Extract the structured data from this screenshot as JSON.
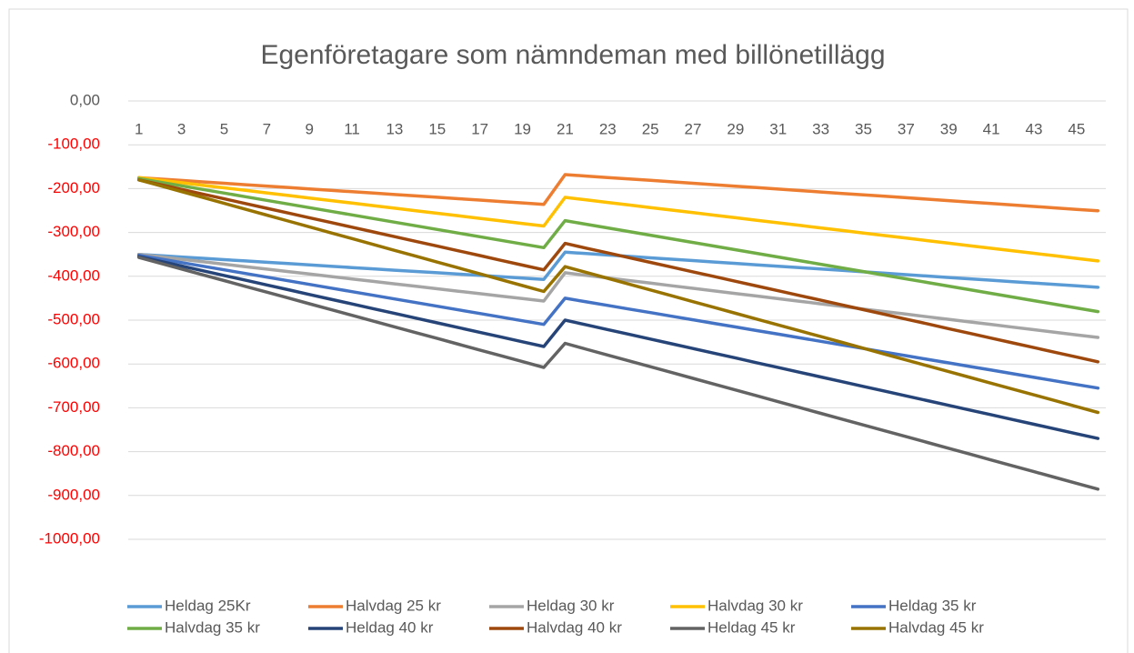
{
  "chart_data": {
    "type": "line",
    "title": "Egenföretagare som nämndeman med billönetillägg",
    "categories": [
      1,
      null,
      3,
      null,
      5,
      null,
      7,
      null,
      9,
      null,
      11,
      null,
      13,
      null,
      15,
      null,
      17,
      null,
      19,
      null,
      21,
      null,
      23,
      null,
      25,
      null,
      27,
      null,
      29,
      null,
      31,
      null,
      33,
      null,
      35,
      null,
      37,
      null,
      39,
      null,
      41,
      null,
      43,
      null,
      45,
      null
    ],
    "ylim": [
      -1000,
      0
    ],
    "yticks": [
      {
        "value": 0,
        "label": "0,00"
      },
      {
        "value": -100,
        "label": "-100,00"
      },
      {
        "value": -200,
        "label": "-200,00"
      },
      {
        "value": -300,
        "label": "-300,00"
      },
      {
        "value": -400,
        "label": "-400,00"
      },
      {
        "value": -500,
        "label": "-500,00"
      },
      {
        "value": -600,
        "label": "-600,00"
      },
      {
        "value": -700,
        "label": "-700,00"
      },
      {
        "value": -800,
        "label": "-800,00"
      },
      {
        "value": -900,
        "label": "-900,00"
      },
      {
        "value": -1000,
        "label": "-1000,00"
      }
    ],
    "grid": true,
    "negative_tick_color": "#ff0000",
    "legend": "bottom",
    "series": [
      {
        "name": "Heldag 25Kr",
        "color": "#5b9bd5",
        "values": [
          -350,
          -353,
          -356,
          -359,
          -362,
          -365,
          -368,
          -371,
          -374,
          -377,
          -380,
          -383,
          -386,
          -389,
          -392,
          -395,
          -398,
          -401,
          -404,
          -407,
          -345,
          -348.2,
          -351.4,
          -354.6,
          -357.8,
          -361,
          -364.2,
          -367.4,
          -370.6,
          -373.8,
          -377,
          -380.2,
          -383.4,
          -386.6,
          -389.8,
          -393,
          -396.2,
          -399.4,
          -402.6,
          -405.8,
          -409,
          -412.2,
          -415.4,
          -418.6,
          -421.8,
          -425
        ]
      },
      {
        "name": "Halvdag 25 kr",
        "color": "#ed7d31",
        "values": [
          -175,
          -178.2,
          -181.4,
          -184.6,
          -187.8,
          -191,
          -194.2,
          -197.4,
          -200.6,
          -203.8,
          -207,
          -210.2,
          -213.4,
          -216.6,
          -219.8,
          -223,
          -226.2,
          -229.4,
          -232.6,
          -235.8,
          -168,
          -171.3,
          -174.6,
          -177.9,
          -181.2,
          -184.5,
          -187.8,
          -191.1,
          -194.4,
          -197.7,
          -201,
          -204.3,
          -207.6,
          -210.9,
          -214.2,
          -217.5,
          -220.8,
          -224.1,
          -227.4,
          -230.7,
          -234,
          -237.3,
          -240.6,
          -243.9,
          -247.2,
          -250.5
        ]
      },
      {
        "name": "Heldag 30 kr",
        "color": "#a5a5a5",
        "values": [
          -350,
          -355.6,
          -361.2,
          -366.8,
          -372.4,
          -378,
          -383.6,
          -389.2,
          -394.8,
          -400.4,
          -406,
          -411.6,
          -417.2,
          -422.8,
          -428.4,
          -434,
          -439.6,
          -445.2,
          -450.8,
          -456.4,
          -392,
          -397.9,
          -403.8,
          -409.7,
          -415.6,
          -421.5,
          -427.4,
          -433.3,
          -439.2,
          -445.1,
          -451,
          -456.9,
          -462.8,
          -468.7,
          -474.6,
          -480.5,
          -486.4,
          -492.3,
          -498.2,
          -504.1,
          -510,
          -515.9,
          -521.8,
          -527.7,
          -533.6,
          -539.5
        ]
      },
      {
        "name": "Halvdag 30 kr",
        "color": "#ffc000",
        "values": [
          -175,
          -180.8,
          -186.6,
          -192.4,
          -198.2,
          -204,
          -209.8,
          -215.6,
          -221.4,
          -227.2,
          -233,
          -238.8,
          -244.6,
          -250.4,
          -256.2,
          -262,
          -267.8,
          -273.6,
          -279.4,
          -285.2,
          -220,
          -225.8,
          -231.6,
          -237.4,
          -243.2,
          -249,
          -254.8,
          -260.6,
          -266.4,
          -272.2,
          -278,
          -283.8,
          -289.6,
          -295.4,
          -301.2,
          -307,
          -312.8,
          -318.6,
          -324.4,
          -330.2,
          -336,
          -341.8,
          -347.6,
          -353.4,
          -359.2,
          -365
        ]
      },
      {
        "name": "Heldag 35 kr",
        "color": "#4472c4",
        "values": [
          -352,
          -360.3,
          -368.6,
          -376.9,
          -385.2,
          -393.5,
          -401.8,
          -410.1,
          -418.4,
          -426.7,
          -435,
          -443.3,
          -451.6,
          -459.9,
          -468.2,
          -476.5,
          -484.8,
          -493.1,
          -501.4,
          -509.7,
          -450,
          -458.2,
          -466.4,
          -474.6,
          -482.8,
          -491,
          -499.2,
          -507.4,
          -515.6,
          -523.8,
          -532,
          -540.2,
          -548.4,
          -556.6,
          -564.8,
          -573,
          -581.2,
          -589.4,
          -597.6,
          -605.8,
          -614,
          -622.2,
          -630.4,
          -638.6,
          -646.8,
          -655
        ]
      },
      {
        "name": "Halvdag 35 kr",
        "color": "#70ad47",
        "values": [
          -177,
          -185.3,
          -193.6,
          -201.9,
          -210.2,
          -218.5,
          -226.8,
          -235.1,
          -243.4,
          -251.7,
          -260,
          -268.3,
          -276.6,
          -284.9,
          -293.2,
          -301.5,
          -309.8,
          -318.1,
          -326.4,
          -334.7,
          -273,
          -281.3,
          -289.6,
          -297.9,
          -306.2,
          -314.5,
          -322.8,
          -331.1,
          -339.4,
          -347.7,
          -356,
          -364.3,
          -372.6,
          -380.9,
          -389.2,
          -397.5,
          -405.8,
          -414.1,
          -422.4,
          -430.7,
          -439,
          -447.3,
          -455.6,
          -463.9,
          -472.2,
          -480.5
        ]
      },
      {
        "name": "Heldag 40 kr",
        "color": "#264478",
        "values": [
          -355,
          -365.8,
          -376.6,
          -387.4,
          -398.2,
          -409,
          -419.8,
          -430.6,
          -441.4,
          -452.2,
          -463,
          -473.8,
          -484.6,
          -495.4,
          -506.2,
          -517,
          -527.8,
          -538.6,
          -549.4,
          -560.2,
          -500,
          -510.8,
          -521.6,
          -532.4,
          -543.2,
          -554,
          -564.8,
          -575.6,
          -586.4,
          -597.2,
          -608,
          -618.8,
          -629.6,
          -640.4,
          -651.2,
          -662,
          -672.8,
          -683.6,
          -694.4,
          -705.2,
          -716,
          -726.8,
          -737.6,
          -748.4,
          -759.2,
          -770
        ]
      },
      {
        "name": "Halvdag 40 kr",
        "color": "#9e480e",
        "values": [
          -180,
          -190.8,
          -201.6,
          -212.4,
          -223.2,
          -234,
          -244.8,
          -255.6,
          -266.4,
          -277.2,
          -288,
          -298.8,
          -309.6,
          -320.4,
          -331.2,
          -342,
          -352.8,
          -363.6,
          -374.4,
          -385.2,
          -325,
          -335.8,
          -346.6,
          -357.4,
          -368.2,
          -379,
          -389.8,
          -400.6,
          -411.4,
          -422.2,
          -433,
          -443.8,
          -454.6,
          -465.4,
          -476.2,
          -487,
          -497.8,
          -508.6,
          -519.4,
          -530.2,
          -541,
          -551.8,
          -562.6,
          -573.4,
          -584.2,
          -595
        ]
      },
      {
        "name": "Heldag 45 kr",
        "color": "#636363",
        "values": [
          -357,
          -370.2,
          -383.4,
          -396.6,
          -409.8,
          -423,
          -436.2,
          -449.4,
          -462.6,
          -475.8,
          -489,
          -502.2,
          -515.4,
          -528.6,
          -541.8,
          -555,
          -568.2,
          -581.4,
          -594.6,
          -607.8,
          -553,
          -566.3,
          -579.6,
          -592.9,
          -606.2,
          -619.5,
          -632.8,
          -646.1,
          -659.4,
          -672.7,
          -686,
          -699.3,
          -712.6,
          -725.9,
          -739.2,
          -752.5,
          -765.8,
          -779.1,
          -792.4,
          -805.7,
          -819,
          -832.3,
          -845.6,
          -858.9,
          -872.2,
          -885.5
        ]
      },
      {
        "name": "Halvdag 45 kr",
        "color": "#997300",
        "values": [
          -180,
          -193.4,
          -206.8,
          -220.2,
          -233.6,
          -247,
          -260.4,
          -273.8,
          -287.2,
          -300.6,
          -314,
          -327.4,
          -340.8,
          -354.2,
          -367.6,
          -381,
          -394.4,
          -407.8,
          -421.2,
          -434.6,
          -378,
          -391.3,
          -404.6,
          -417.9,
          -431.2,
          -444.5,
          -457.8,
          -471.1,
          -484.4,
          -497.7,
          -511,
          -524.3,
          -537.6,
          -550.9,
          -564.2,
          -577.5,
          -590.8,
          -604.1,
          -617.4,
          -630.7,
          -644,
          -657.3,
          -670.6,
          -683.9,
          -697.2,
          -710.5
        ]
      }
    ]
  }
}
